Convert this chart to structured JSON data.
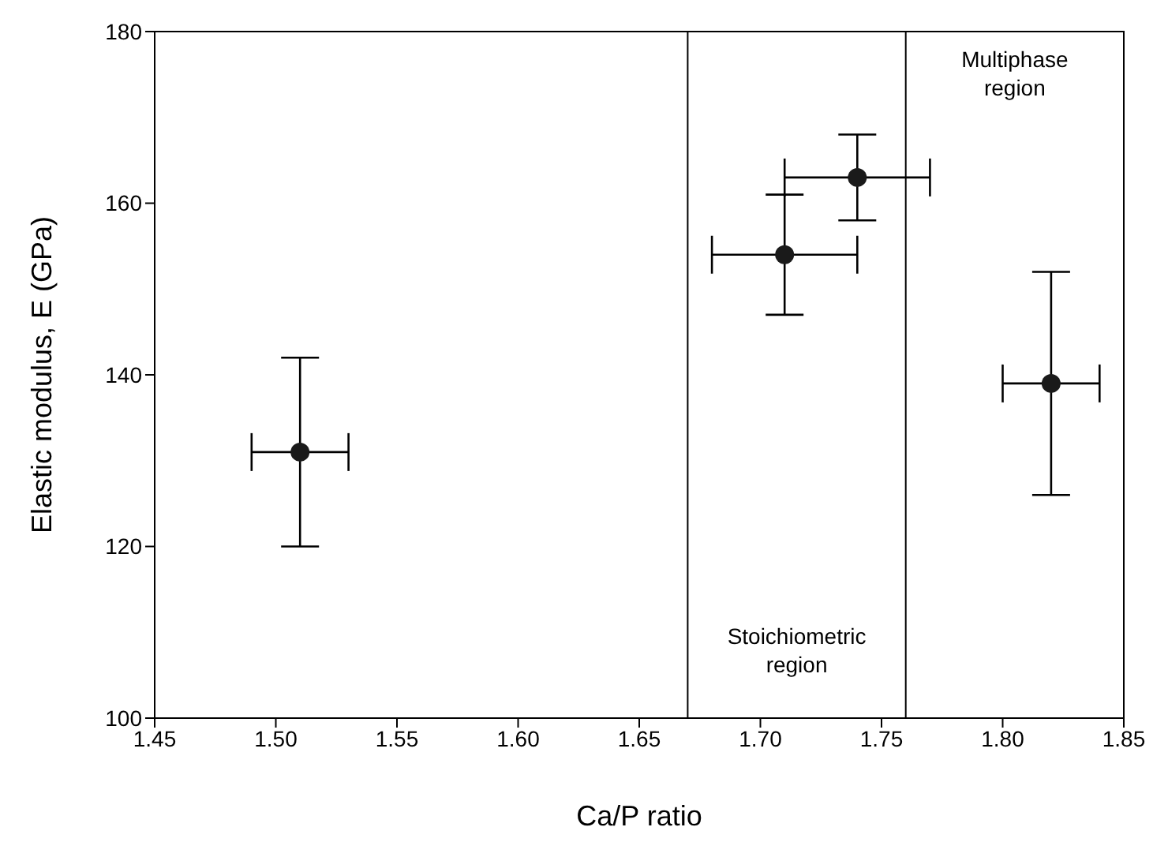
{
  "chart_data": {
    "type": "scatter",
    "xlabel": "Ca/P ratio",
    "ylabel": "Elastic modulus, E (GPa)",
    "x": [
      1.51,
      1.71,
      1.74,
      1.82
    ],
    "values": [
      131,
      154,
      163,
      139
    ],
    "errors": [
      [
        120,
        142
      ],
      [
        147,
        161
      ],
      [
        158,
        168
      ],
      [
        126,
        152
      ]
    ],
    "xerrors": [
      [
        1.49,
        1.53
      ],
      [
        1.68,
        1.74
      ],
      [
        1.71,
        1.77
      ],
      [
        1.8,
        1.84
      ]
    ],
    "color": "#1a1a1a",
    "marker": "circle",
    "xlim": [
      1.45,
      1.85
    ],
    "xticks": [
      {
        "value": 1.45,
        "label": "1.45"
      },
      {
        "value": 1.5,
        "label": "1.50"
      },
      {
        "value": 1.55,
        "label": "1.55"
      },
      {
        "value": 1.6,
        "label": "1.60"
      },
      {
        "value": 1.65,
        "label": "1.65"
      },
      {
        "value": 1.7,
        "label": "1.70"
      },
      {
        "value": 1.75,
        "label": "1.75"
      },
      {
        "value": 1.8,
        "label": "1.80"
      },
      {
        "value": 1.85,
        "label": "1.85"
      }
    ],
    "ylim": [
      100,
      180
    ],
    "yticks": [
      100,
      120,
      140,
      160,
      180
    ],
    "ref_lines": [
      {
        "axis": "x",
        "value": 1.67,
        "color": "#000000"
      },
      {
        "axis": "x",
        "value": 1.76,
        "color": "#000000"
      }
    ],
    "annotations": [
      "Stoichiometric region",
      "Multiphase region"
    ]
  }
}
